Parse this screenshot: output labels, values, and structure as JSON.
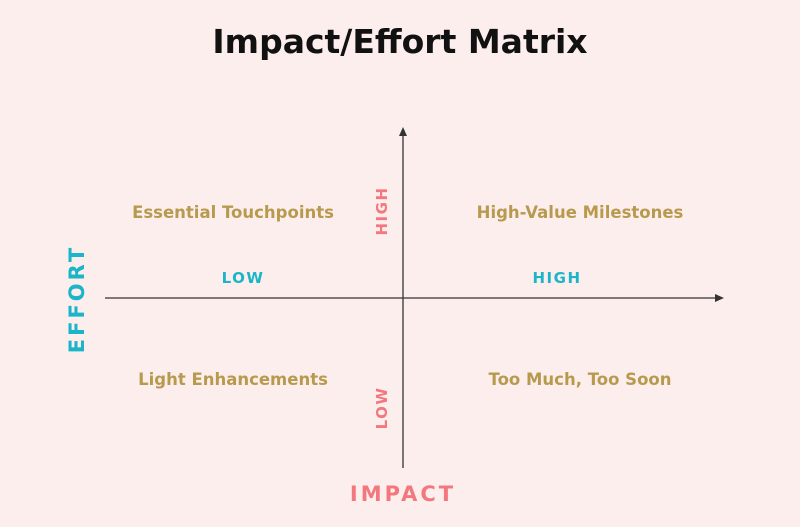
{
  "title": "Impact/Effort Matrix",
  "axes": {
    "horizontal_label": "EFFORT",
    "vertical_label": "IMPACT",
    "horizontal_low": "LOW",
    "horizontal_high": "HIGH",
    "vertical_high": "HIGH",
    "vertical_low": "LOW"
  },
  "quadrants": {
    "top_left": "Essential Touchpoints",
    "top_right": "High-Value Milestones",
    "bottom_left": "Light Enhancements",
    "bottom_right": "Too Much, Too Soon"
  },
  "colors": {
    "background": "#fdeeee",
    "quadrant_text": "#b89a4e",
    "effort_accent": "#1ab5c9",
    "impact_accent": "#f2787e",
    "axis_line": "#333333"
  }
}
